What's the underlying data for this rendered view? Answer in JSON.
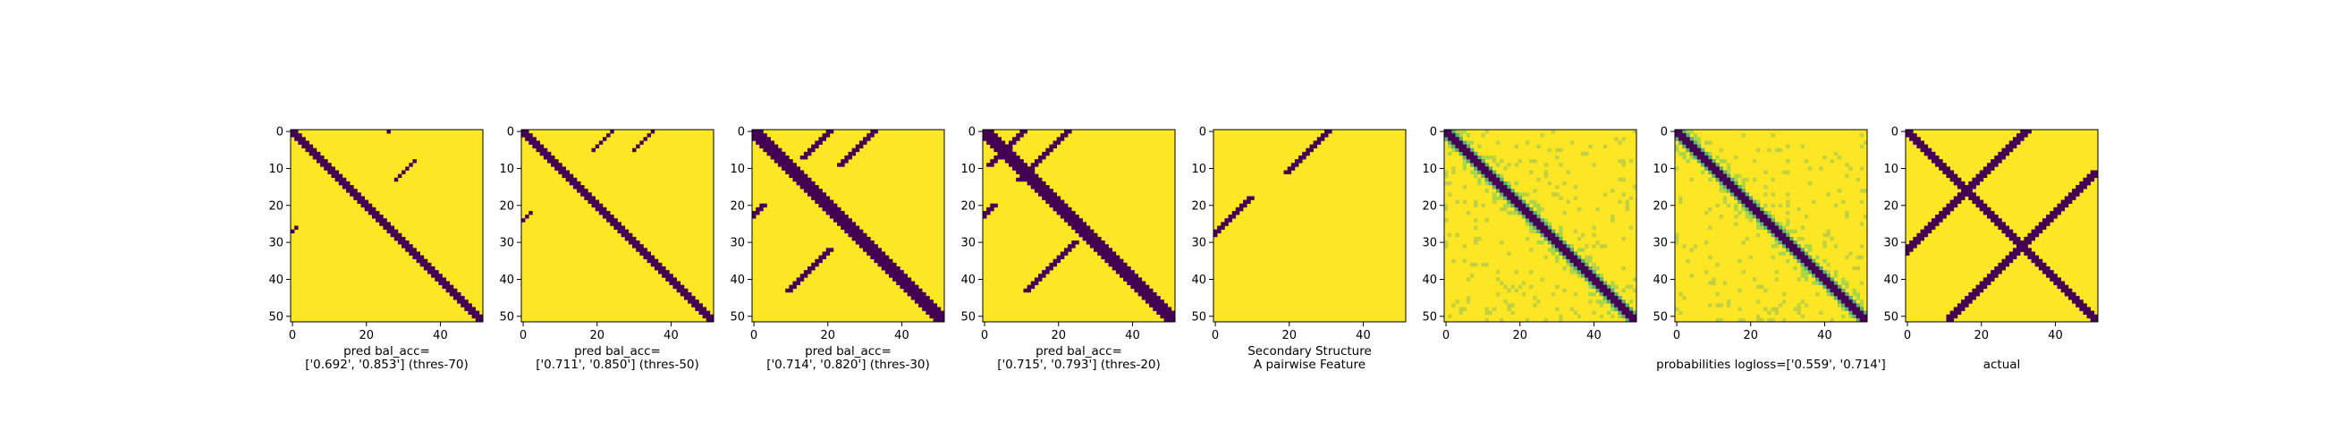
{
  "colors": {
    "low": "#440154",
    "high": "#fde725",
    "mid": "#21918c",
    "midlight": "#5ec962"
  },
  "chart_data": [
    {
      "type": "heatmap",
      "caption_lines": [
        "pred bal_acc=",
        "['0.692', '0.853'] (thres-70)"
      ],
      "xticks": [
        "0",
        "20",
        "40"
      ],
      "yticks": [
        "0",
        "10",
        "20",
        "30",
        "40",
        "50"
      ],
      "xlim": [
        0,
        52
      ],
      "ylim": [
        52,
        0
      ],
      "matrix_size": 52,
      "bands": [
        {
          "offset": 0,
          "width": 1,
          "value": 0
        }
      ],
      "extra": [
        {
          "y0": 0,
          "x0": 26,
          "len": 1
        },
        {
          "y0": 8,
          "x0": 33,
          "len": 6
        },
        {
          "y0": 26,
          "x0": 1,
          "len": 5
        }
      ]
    },
    {
      "type": "heatmap",
      "caption_lines": [
        "pred bal_acc=",
        "['0.711', '0.850'] (thres-50)"
      ],
      "xticks": [
        "0",
        "20",
        "40"
      ],
      "yticks": [
        "0",
        "10",
        "20",
        "30",
        "40",
        "50"
      ],
      "xlim": [
        0,
        52
      ],
      "ylim": [
        52,
        0
      ],
      "matrix_size": 52,
      "bands": [
        {
          "offset": 0,
          "width": 1,
          "value": 0
        }
      ],
      "extra": [
        {
          "y0": 0,
          "x0": 24,
          "len": 6
        },
        {
          "y0": 0,
          "x0": 35,
          "len": 6
        },
        {
          "y0": 22,
          "x0": 2,
          "len": 6
        }
      ]
    },
    {
      "type": "heatmap",
      "caption_lines": [
        "pred bal_acc=",
        "['0.714', '0.820'] (thres-30)"
      ],
      "xticks": [
        "0",
        "20",
        "40"
      ],
      "yticks": [
        "0",
        "10",
        "20",
        "30",
        "40",
        "50"
      ],
      "xlim": [
        0,
        52
      ],
      "ylim": [
        52,
        0
      ],
      "matrix_size": 52,
      "bands": [
        {
          "offset": 0,
          "width": 2,
          "value": 0
        }
      ],
      "extra": [
        {
          "y0": 0,
          "x0": 20,
          "len": 8
        },
        {
          "y0": 0,
          "x0": 32,
          "len": 10
        },
        {
          "y0": 20,
          "x0": 2,
          "len": 10
        },
        {
          "y0": 32,
          "x0": 20,
          "len": 12
        }
      ]
    },
    {
      "type": "heatmap",
      "caption_lines": [
        "pred bal_acc=",
        "['0.715', '0.793'] (thres-20)"
      ],
      "xticks": [
        "0",
        "20",
        "40"
      ],
      "yticks": [
        "0",
        "10",
        "20",
        "30",
        "40",
        "50"
      ],
      "xlim": [
        0,
        52
      ],
      "ylim": [
        52,
        0
      ],
      "matrix_size": 52,
      "bands": [
        {
          "offset": 0,
          "width": 2,
          "value": 0
        }
      ],
      "extra": [
        {
          "y0": 0,
          "x0": 22,
          "len": 14
        },
        {
          "y0": 0,
          "x0": 10,
          "len": 10
        },
        {
          "y0": 20,
          "x0": 2,
          "len": 12
        },
        {
          "y0": 30,
          "x0": 24,
          "len": 14
        }
      ]
    },
    {
      "type": "heatmap",
      "caption_lines": [
        "Secondary Structure",
        "A pairwise Feature"
      ],
      "xticks": [
        "0",
        "20",
        "40"
      ],
      "yticks": [
        "0",
        "10",
        "20",
        "30",
        "40",
        "50"
      ],
      "xlim": [
        0,
        52
      ],
      "ylim": [
        52,
        0
      ],
      "matrix_size": 52,
      "bands": [],
      "extra": [
        {
          "y0": 0,
          "x0": 30,
          "len": 12
        },
        {
          "y0": 18,
          "x0": 9,
          "len": 13
        }
      ]
    },
    {
      "type": "heatmap",
      "caption_lines": [
        "",
        "probabilities logloss=['0.559', '0.714']"
      ],
      "xticks": [
        "0",
        "20",
        "40"
      ],
      "yticks": [
        "0",
        "10",
        "20",
        "30",
        "40",
        "50"
      ],
      "xlim": [
        0,
        52
      ],
      "ylim": [
        52,
        0
      ],
      "matrix_size": 52,
      "bands": [
        {
          "offset": 0,
          "width": 2,
          "value": 0
        },
        {
          "offset": 4,
          "width": 1,
          "value": 0.5
        }
      ],
      "extra": [],
      "mode": "prob"
    },
    {
      "type": "heatmap",
      "caption_lines": [
        "",
        "actual"
      ],
      "xticks": [
        "0",
        "20",
        "40"
      ],
      "yticks": [
        "0",
        "10",
        "20",
        "30",
        "40",
        "50"
      ],
      "xlim": [
        0,
        52
      ],
      "ylim": [
        52,
        0
      ],
      "matrix_size": 52,
      "bands": [
        {
          "offset": 0,
          "width": 2,
          "value": 0
        }
      ],
      "extra": [],
      "mode": "actual"
    }
  ],
  "first_panel": {
    "caption_lines": [
      "pred bal_acc=",
      "['0.692', '0.853'] (thres-70)"
    ]
  }
}
